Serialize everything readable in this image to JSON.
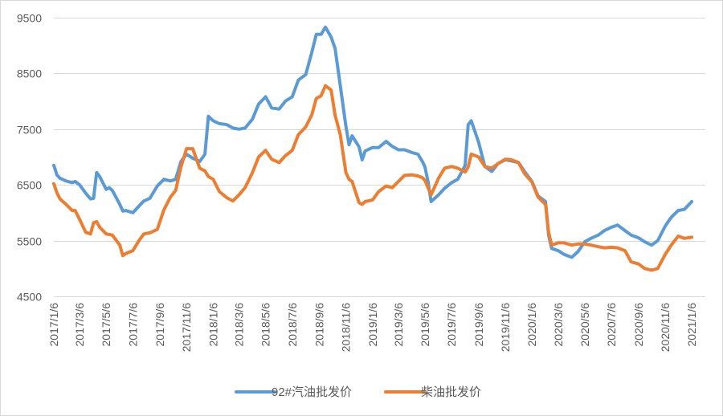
{
  "chart_data": {
    "type": "line",
    "title": "",
    "xlabel": "",
    "ylabel": "",
    "ylim": [
      4500,
      9500
    ],
    "yticks": [
      4500,
      5500,
      6500,
      7500,
      8500,
      9500
    ],
    "x_tick_labels": [
      "2017/1/6",
      "2017/3/6",
      "2017/5/6",
      "2017/7/6",
      "2017/9/6",
      "2017/11/6",
      "2018/1/6",
      "2018/3/6",
      "2018/5/6",
      "2018/7/6",
      "2018/9/6",
      "2018/11/6",
      "2019/1/6",
      "2019/3/6",
      "2019/5/6",
      "2019/7/6",
      "2019/9/6",
      "2019/11/6",
      "2020/1/6",
      "2020/3/6",
      "2020/5/6",
      "2020/7/6",
      "2020/9/6",
      "2020/11/6",
      "2021/1/6"
    ],
    "grid": "horizontal",
    "legend_position": "bottom",
    "series": [
      {
        "name": "92#汽油批发价",
        "color": "#5b9bd5",
        "points": [
          [
            "2017-01-06",
            6850
          ],
          [
            "2017-01-13",
            6680
          ],
          [
            "2017-01-20",
            6620
          ],
          [
            "2017-02-03",
            6570
          ],
          [
            "2017-02-17",
            6540
          ],
          [
            "2017-02-24",
            6560
          ],
          [
            "2017-03-06",
            6500
          ],
          [
            "2017-03-20",
            6350
          ],
          [
            "2017-03-31",
            6250
          ],
          [
            "2017-04-07",
            6260
          ],
          [
            "2017-04-14",
            6720
          ],
          [
            "2017-04-21",
            6650
          ],
          [
            "2017-05-06",
            6420
          ],
          [
            "2017-05-13",
            6450
          ],
          [
            "2017-05-20",
            6400
          ],
          [
            "2017-06-06",
            6150
          ],
          [
            "2017-06-13",
            6030
          ],
          [
            "2017-06-20",
            6040
          ],
          [
            "2017-07-06",
            6000
          ],
          [
            "2017-07-20",
            6120
          ],
          [
            "2017-07-31",
            6210
          ],
          [
            "2017-08-14",
            6260
          ],
          [
            "2017-08-31",
            6480
          ],
          [
            "2017-09-15",
            6600
          ],
          [
            "2017-09-30",
            6570
          ],
          [
            "2017-10-12",
            6600
          ],
          [
            "2017-10-24",
            6920
          ],
          [
            "2017-11-06",
            7050
          ],
          [
            "2017-11-20",
            6980
          ],
          [
            "2017-12-06",
            6920
          ],
          [
            "2017-12-18",
            7050
          ],
          [
            "2017-12-26",
            7730
          ],
          [
            "2018-01-06",
            7650
          ],
          [
            "2018-01-20",
            7600
          ],
          [
            "2018-02-06",
            7580
          ],
          [
            "2018-02-20",
            7520
          ],
          [
            "2018-03-06",
            7500
          ],
          [
            "2018-03-20",
            7520
          ],
          [
            "2018-04-06",
            7680
          ],
          [
            "2018-04-20",
            7950
          ],
          [
            "2018-05-06",
            8080
          ],
          [
            "2018-05-20",
            7880
          ],
          [
            "2018-06-06",
            7860
          ],
          [
            "2018-06-20",
            8000
          ],
          [
            "2018-07-06",
            8080
          ],
          [
            "2018-07-20",
            8380
          ],
          [
            "2018-08-06",
            8480
          ],
          [
            "2018-08-20",
            8880
          ],
          [
            "2018-08-30",
            9200
          ],
          [
            "2018-09-10",
            9200
          ],
          [
            "2018-09-20",
            9330
          ],
          [
            "2018-10-03",
            9150
          ],
          [
            "2018-10-12",
            8950
          ],
          [
            "2018-10-24",
            8280
          ],
          [
            "2018-11-06",
            7550
          ],
          [
            "2018-11-13",
            7220
          ],
          [
            "2018-11-20",
            7380
          ],
          [
            "2018-12-06",
            7180
          ],
          [
            "2018-12-13",
            6950
          ],
          [
            "2018-12-20",
            7110
          ],
          [
            "2019-01-06",
            7170
          ],
          [
            "2019-01-20",
            7170
          ],
          [
            "2019-02-06",
            7280
          ],
          [
            "2019-02-20",
            7190
          ],
          [
            "2019-03-06",
            7130
          ],
          [
            "2019-03-20",
            7130
          ],
          [
            "2019-04-06",
            7080
          ],
          [
            "2019-04-20",
            7050
          ],
          [
            "2019-04-30",
            6920
          ],
          [
            "2019-05-06",
            6820
          ],
          [
            "2019-05-13",
            6560
          ],
          [
            "2019-05-20",
            6200
          ],
          [
            "2019-06-06",
            6320
          ],
          [
            "2019-06-20",
            6440
          ],
          [
            "2019-07-06",
            6540
          ],
          [
            "2019-07-20",
            6600
          ],
          [
            "2019-08-06",
            6850
          ],
          [
            "2019-08-13",
            7580
          ],
          [
            "2019-08-20",
            7650
          ],
          [
            "2019-09-06",
            7260
          ],
          [
            "2019-09-20",
            6830
          ],
          [
            "2019-10-06",
            6740
          ],
          [
            "2019-10-20",
            6880
          ],
          [
            "2019-11-06",
            6950
          ],
          [
            "2019-11-20",
            6930
          ],
          [
            "2019-12-06",
            6900
          ],
          [
            "2019-12-20",
            6740
          ],
          [
            "2020-01-06",
            6560
          ],
          [
            "2020-01-20",
            6300
          ],
          [
            "2020-02-06",
            6200
          ],
          [
            "2020-02-13",
            5600
          ],
          [
            "2020-02-20",
            5360
          ],
          [
            "2020-03-06",
            5320
          ],
          [
            "2020-03-20",
            5250
          ],
          [
            "2020-04-06",
            5200
          ],
          [
            "2020-04-20",
            5300
          ],
          [
            "2020-05-06",
            5480
          ],
          [
            "2020-05-20",
            5540
          ],
          [
            "2020-06-06",
            5600
          ],
          [
            "2020-06-20",
            5680
          ],
          [
            "2020-07-06",
            5740
          ],
          [
            "2020-07-20",
            5780
          ],
          [
            "2020-08-06",
            5680
          ],
          [
            "2020-08-20",
            5600
          ],
          [
            "2020-09-06",
            5550
          ],
          [
            "2020-09-20",
            5480
          ],
          [
            "2020-10-06",
            5420
          ],
          [
            "2020-10-20",
            5500
          ],
          [
            "2020-11-06",
            5760
          ],
          [
            "2020-11-20",
            5920
          ],
          [
            "2020-12-06",
            6040
          ],
          [
            "2020-12-20",
            6060
          ],
          [
            "2021-01-06",
            6200
          ]
        ]
      },
      {
        "name": "柴油批发价",
        "color": "#ed7d31",
        "points": [
          [
            "2017-01-06",
            6520
          ],
          [
            "2017-01-13",
            6360
          ],
          [
            "2017-01-20",
            6250
          ],
          [
            "2017-02-03",
            6150
          ],
          [
            "2017-02-17",
            6040
          ],
          [
            "2017-02-24",
            6040
          ],
          [
            "2017-03-06",
            5880
          ],
          [
            "2017-03-20",
            5650
          ],
          [
            "2017-03-31",
            5620
          ],
          [
            "2017-04-07",
            5820
          ],
          [
            "2017-04-14",
            5840
          ],
          [
            "2017-04-21",
            5740
          ],
          [
            "2017-05-06",
            5620
          ],
          [
            "2017-05-13",
            5610
          ],
          [
            "2017-05-20",
            5600
          ],
          [
            "2017-06-06",
            5420
          ],
          [
            "2017-06-13",
            5230
          ],
          [
            "2017-06-20",
            5270
          ],
          [
            "2017-07-06",
            5320
          ],
          [
            "2017-07-20",
            5500
          ],
          [
            "2017-07-31",
            5620
          ],
          [
            "2017-08-14",
            5640
          ],
          [
            "2017-08-31",
            5700
          ],
          [
            "2017-09-15",
            6050
          ],
          [
            "2017-09-30",
            6280
          ],
          [
            "2017-10-12",
            6400
          ],
          [
            "2017-10-24",
            6820
          ],
          [
            "2017-11-06",
            7150
          ],
          [
            "2017-11-20",
            7150
          ],
          [
            "2017-12-06",
            6800
          ],
          [
            "2017-12-18",
            6750
          ],
          [
            "2017-12-26",
            6650
          ],
          [
            "2018-01-06",
            6600
          ],
          [
            "2018-01-20",
            6380
          ],
          [
            "2018-02-06",
            6270
          ],
          [
            "2018-02-20",
            6210
          ],
          [
            "2018-03-06",
            6320
          ],
          [
            "2018-03-20",
            6450
          ],
          [
            "2018-04-06",
            6720
          ],
          [
            "2018-04-20",
            7000
          ],
          [
            "2018-05-06",
            7120
          ],
          [
            "2018-05-20",
            6960
          ],
          [
            "2018-06-06",
            6900
          ],
          [
            "2018-06-20",
            7020
          ],
          [
            "2018-07-06",
            7120
          ],
          [
            "2018-07-20",
            7400
          ],
          [
            "2018-08-06",
            7540
          ],
          [
            "2018-08-20",
            7760
          ],
          [
            "2018-08-30",
            8050
          ],
          [
            "2018-09-10",
            8100
          ],
          [
            "2018-09-20",
            8280
          ],
          [
            "2018-10-03",
            8200
          ],
          [
            "2018-10-12",
            7750
          ],
          [
            "2018-10-24",
            7400
          ],
          [
            "2018-11-06",
            6720
          ],
          [
            "2018-11-13",
            6600
          ],
          [
            "2018-11-20",
            6560
          ],
          [
            "2018-12-06",
            6180
          ],
          [
            "2018-12-13",
            6150
          ],
          [
            "2018-12-20",
            6200
          ],
          [
            "2019-01-06",
            6230
          ],
          [
            "2019-01-20",
            6380
          ],
          [
            "2019-02-06",
            6480
          ],
          [
            "2019-02-20",
            6450
          ],
          [
            "2019-03-06",
            6560
          ],
          [
            "2019-03-20",
            6670
          ],
          [
            "2019-04-06",
            6680
          ],
          [
            "2019-04-20",
            6660
          ],
          [
            "2019-04-30",
            6630
          ],
          [
            "2019-05-06",
            6580
          ],
          [
            "2019-05-13",
            6450
          ],
          [
            "2019-05-20",
            6320
          ],
          [
            "2019-06-06",
            6620
          ],
          [
            "2019-06-20",
            6800
          ],
          [
            "2019-07-06",
            6830
          ],
          [
            "2019-07-20",
            6800
          ],
          [
            "2019-08-06",
            6730
          ],
          [
            "2019-08-13",
            6820
          ],
          [
            "2019-08-20",
            7050
          ],
          [
            "2019-09-06",
            7000
          ],
          [
            "2019-09-20",
            6830
          ],
          [
            "2019-10-06",
            6800
          ],
          [
            "2019-10-20",
            6880
          ],
          [
            "2019-11-06",
            6960
          ],
          [
            "2019-11-20",
            6950
          ],
          [
            "2019-12-06",
            6900
          ],
          [
            "2019-12-20",
            6700
          ],
          [
            "2020-01-06",
            6550
          ],
          [
            "2020-01-20",
            6280
          ],
          [
            "2020-02-06",
            6150
          ],
          [
            "2020-02-13",
            5650
          ],
          [
            "2020-02-20",
            5420
          ],
          [
            "2020-03-06",
            5460
          ],
          [
            "2020-03-20",
            5460
          ],
          [
            "2020-04-06",
            5420
          ],
          [
            "2020-04-20",
            5440
          ],
          [
            "2020-05-06",
            5440
          ],
          [
            "2020-05-20",
            5420
          ],
          [
            "2020-06-06",
            5390
          ],
          [
            "2020-06-20",
            5370
          ],
          [
            "2020-07-06",
            5380
          ],
          [
            "2020-07-20",
            5370
          ],
          [
            "2020-08-06",
            5320
          ],
          [
            "2020-08-20",
            5120
          ],
          [
            "2020-09-06",
            5080
          ],
          [
            "2020-09-20",
            5000
          ],
          [
            "2020-10-06",
            4970
          ],
          [
            "2020-10-20",
            5000
          ],
          [
            "2020-11-06",
            5250
          ],
          [
            "2020-11-20",
            5420
          ],
          [
            "2020-12-06",
            5580
          ],
          [
            "2020-12-20",
            5540
          ],
          [
            "2021-01-06",
            5560
          ]
        ]
      }
    ]
  }
}
